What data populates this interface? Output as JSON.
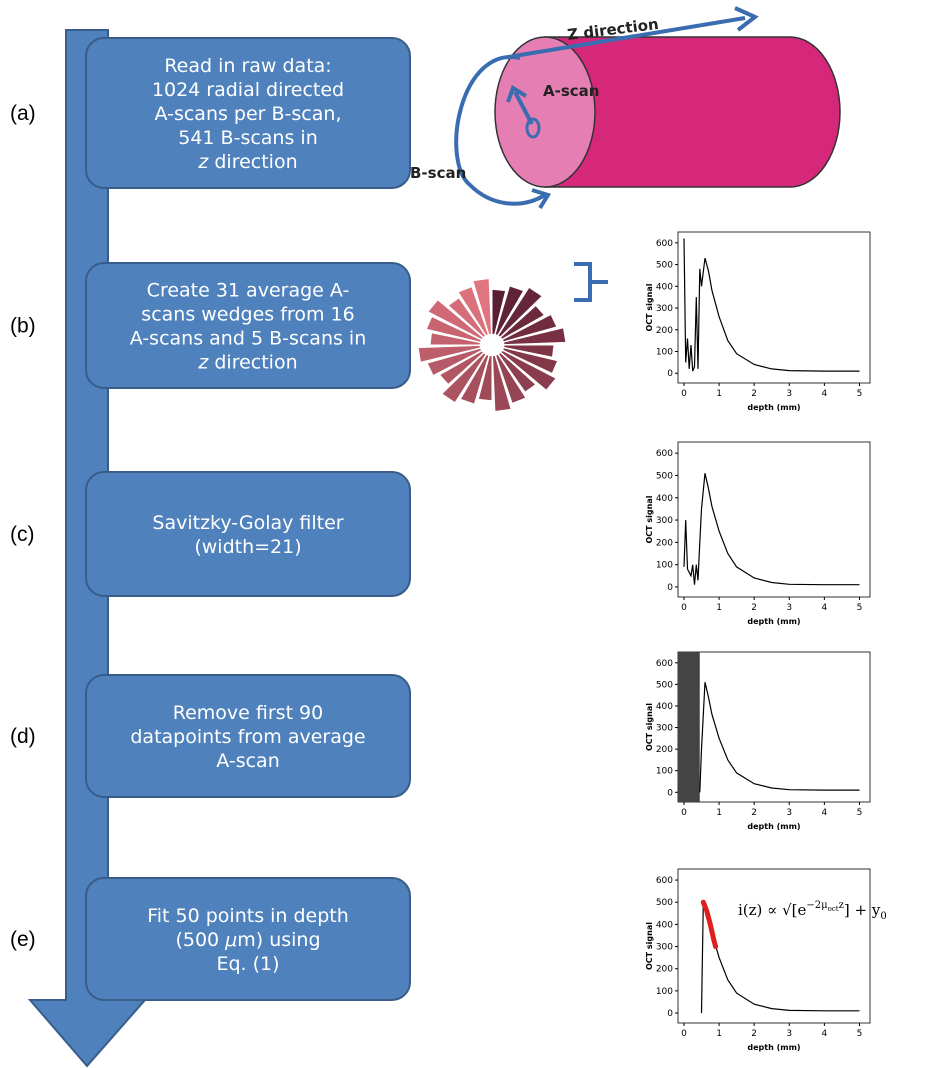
{
  "steps": [
    {
      "label": "(a)",
      "lines": [
        [
          {
            "text": "Read in raw data:"
          }
        ],
        [
          {
            "text": "1024 radial directed"
          }
        ],
        [
          {
            "text": "A-scans per B-scan,"
          }
        ],
        [
          {
            "text": "541 B-scans in"
          }
        ],
        [
          {
            "text": "z",
            "italic": true
          },
          {
            "text": " direction"
          }
        ]
      ]
    },
    {
      "label": "(b)",
      "lines": [
        [
          {
            "text": "Create 31 average A-"
          }
        ],
        [
          {
            "text": "scans wedges from 16"
          }
        ],
        [
          {
            "text": "A-scans and 5 B-scans in"
          }
        ],
        [
          {
            "text": "z",
            "italic": true
          },
          {
            "text": " direction"
          }
        ]
      ]
    },
    {
      "label": "(c)",
      "lines": [
        [
          {
            "text": "Savitzky-Golay filter"
          }
        ],
        [
          {
            "text": "(width=21)"
          }
        ]
      ]
    },
    {
      "label": "(d)",
      "lines": [
        [
          {
            "text": "Remove first 90"
          }
        ],
        [
          {
            "text": "datapoints from average"
          }
        ],
        [
          {
            "text": "A-scan"
          }
        ]
      ]
    },
    {
      "label": "(e)",
      "lines": [
        [
          {
            "text": "Fit 50 points in depth"
          }
        ],
        [
          {
            "text": "(500 "
          },
          {
            "text": "μ",
            "italic": true
          },
          {
            "text": "m) using"
          }
        ],
        [
          {
            "text": "Eq. (1)"
          }
        ]
      ]
    }
  ],
  "cylinder": {
    "z_label": "Z direction",
    "a_label": "A-scan",
    "b_label": "B-scan"
  },
  "plot_axes": {
    "ylabel": "OCT signal",
    "xlabel": "depth (mm)",
    "xlim": [
      -0.17,
      5.3
    ],
    "ylim": [
      -45,
      650
    ],
    "yticks": [
      0,
      100,
      200,
      300,
      400,
      500,
      600
    ],
    "xticks": [
      0,
      1,
      2,
      3,
      4,
      5
    ]
  },
  "plots": [
    {
      "x": [
        0,
        0.05,
        0.1,
        0.15,
        0.2,
        0.25,
        0.3,
        0.35,
        0.4,
        0.45,
        0.5,
        0.6,
        0.7,
        0.8,
        1,
        1.25,
        1.5,
        2,
        2.5,
        3,
        4,
        5
      ],
      "y": [
        620,
        50,
        160,
        20,
        130,
        10,
        30,
        350,
        20,
        480,
        400,
        530,
        470,
        380,
        260,
        150,
        90,
        40,
        20,
        12,
        10,
        10
      ]
    },
    {
      "x": [
        0,
        0.05,
        0.1,
        0.2,
        0.25,
        0.3,
        0.35,
        0.4,
        0.45,
        0.5,
        0.6,
        0.7,
        0.8,
        1,
        1.25,
        1.5,
        2,
        2.5,
        3,
        4,
        5
      ],
      "y": [
        90,
        300,
        80,
        50,
        100,
        10,
        100,
        30,
        200,
        350,
        510,
        440,
        360,
        250,
        150,
        90,
        40,
        20,
        12,
        10,
        10
      ]
    },
    {
      "removed_until": 0.45,
      "x": [
        0.45,
        0.5,
        0.6,
        0.7,
        0.8,
        1,
        1.25,
        1.5,
        2,
        2.5,
        3,
        4,
        5
      ],
      "y": [
        0,
        200,
        510,
        440,
        360,
        250,
        150,
        90,
        40,
        20,
        12,
        10,
        10
      ]
    },
    {
      "x": [
        0.5,
        0.55,
        0.7,
        0.8,
        1,
        1.25,
        1.5,
        2,
        2.5,
        3,
        4,
        5
      ],
      "y": [
        0,
        500,
        440,
        360,
        250,
        150,
        90,
        40,
        20,
        12,
        10,
        10
      ],
      "fit_x": [
        0.55,
        0.65,
        0.75,
        0.85,
        0.9
      ],
      "fit_y": [
        500,
        460,
        400,
        330,
        300
      ],
      "equation": [
        "i(z) ∝ √[e",
        "−2μ",
        "oct",
        "z",
        "]",
        " + y",
        "0"
      ]
    }
  ]
}
